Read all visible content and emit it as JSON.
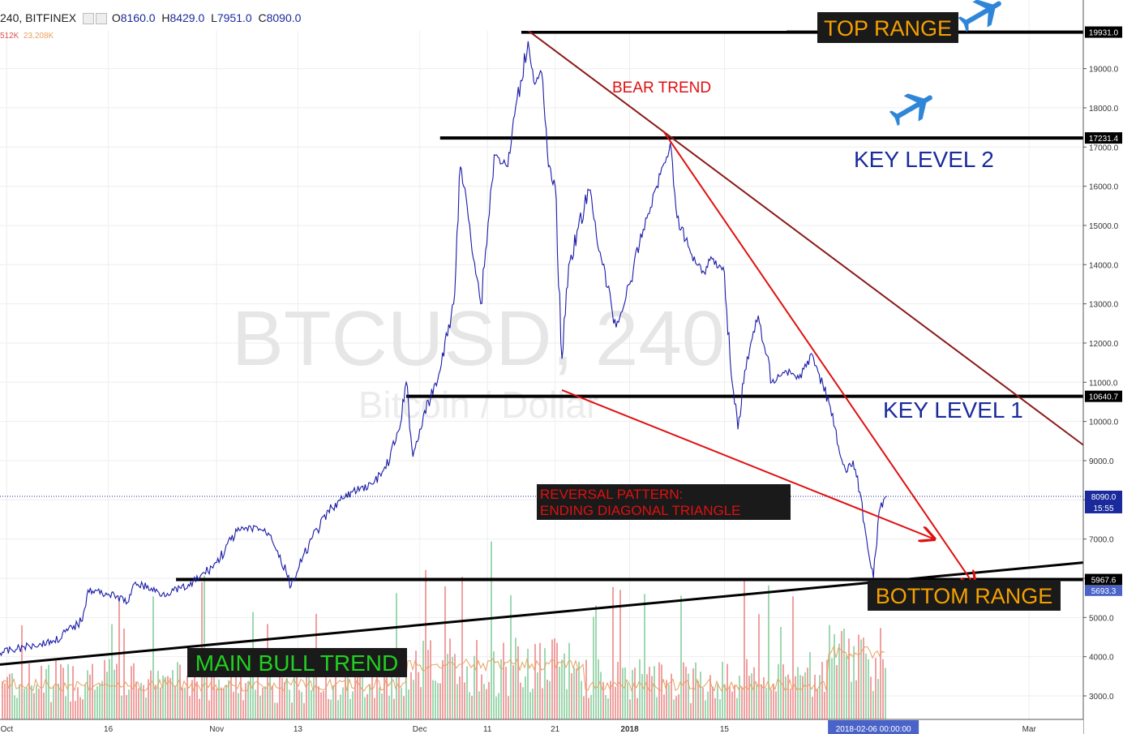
{
  "header": {
    "symbol": "240, BITFINEX",
    "o_label": "O",
    "o_value": "8160.0",
    "h_label": "H",
    "h_value": "8429.0",
    "l_label": "L",
    "l_value": "7951.0",
    "c_label": "C",
    "c_value": "8090.0",
    "volume_a": "512K",
    "volume_b": "23.208K"
  },
  "watermark": {
    "symbol": "BTCUSD, 240",
    "name": "Bitcoin / Dollar"
  },
  "chart_data": {
    "type": "line",
    "instrument": "BTCUSD, 240",
    "exchange": "BITFINEX",
    "ylim": [
      2400,
      20750
    ],
    "y_ticks": [
      3000,
      4000,
      5000,
      6000,
      7000,
      8000,
      9000,
      10000,
      11000,
      12000,
      13000,
      14000,
      15000,
      16000,
      17000,
      18000,
      19000
    ],
    "x_ticks": [
      "Oct",
      "16",
      "Nov",
      "13",
      "Dec",
      "11",
      "21",
      "2018",
      "15",
      "Mar"
    ],
    "x_tick_dates": [
      "2017-10-01",
      "2017-10-16",
      "2017-11-01",
      "2017-11-13",
      "2017-12-01",
      "2017-12-11",
      "2017-12-21",
      "2018-01-01",
      "2018-01-15",
      "2018-03-01"
    ],
    "x_range": [
      "2017-09-30",
      "2018-03-09"
    ],
    "price_series": {
      "name": "BTCUSD",
      "color": "#1a1aa8",
      "points": [
        [
          "2017-09-30",
          4100
        ],
        [
          "2017-10-05",
          4300
        ],
        [
          "2017-10-08",
          4400
        ],
        [
          "2017-10-12",
          4900
        ],
        [
          "2017-10-13",
          5700
        ],
        [
          "2017-10-16",
          5600
        ],
        [
          "2017-10-19",
          5400
        ],
        [
          "2017-10-20",
          5900
        ],
        [
          "2017-10-24",
          5600
        ],
        [
          "2017-10-28",
          5800
        ],
        [
          "2017-11-01",
          6400
        ],
        [
          "2017-11-04",
          7200
        ],
        [
          "2017-11-07",
          7300
        ],
        [
          "2017-11-09",
          7100
        ],
        [
          "2017-11-10",
          6700
        ],
        [
          "2017-11-12",
          5800
        ],
        [
          "2017-11-13",
          6200
        ],
        [
          "2017-11-15",
          7000
        ],
        [
          "2017-11-18",
          7800
        ],
        [
          "2017-11-21",
          8200
        ],
        [
          "2017-11-24",
          8400
        ],
        [
          "2017-11-26",
          8800
        ],
        [
          "2017-11-28",
          9800
        ],
        [
          "2017-11-29",
          11000
        ],
        [
          "2017-11-30",
          9100
        ],
        [
          "2017-12-01",
          9800
        ],
        [
          "2017-12-04",
          11300
        ],
        [
          "2017-12-06",
          13000
        ],
        [
          "2017-12-07",
          16500
        ],
        [
          "2017-12-08",
          15500
        ],
        [
          "2017-12-10",
          13000
        ],
        [
          "2017-12-12",
          16800
        ],
        [
          "2017-12-14",
          16500
        ],
        [
          "2017-12-15",
          17800
        ],
        [
          "2017-12-17",
          19700
        ],
        [
          "2017-12-18",
          18600
        ],
        [
          "2017-12-19",
          18900
        ],
        [
          "2017-12-20",
          16500
        ],
        [
          "2017-12-21",
          16000
        ],
        [
          "2017-12-22",
          11600
        ],
        [
          "2017-12-23",
          14000
        ],
        [
          "2017-12-26",
          15900
        ],
        [
          "2017-12-28",
          14000
        ],
        [
          "2017-12-30",
          12400
        ],
        [
          "2018-01-01",
          13500
        ],
        [
          "2018-01-03",
          14900
        ],
        [
          "2018-01-05",
          16000
        ],
        [
          "2018-01-07",
          17100
        ],
        [
          "2018-01-08",
          15200
        ],
        [
          "2018-01-10",
          14300
        ],
        [
          "2018-01-12",
          13800
        ],
        [
          "2018-01-13",
          14200
        ],
        [
          "2018-01-15",
          13800
        ],
        [
          "2018-01-16",
          11200
        ],
        [
          "2018-01-17",
          9800
        ],
        [
          "2018-01-18",
          11300
        ],
        [
          "2018-01-20",
          12700
        ],
        [
          "2018-01-22",
          11000
        ],
        [
          "2018-01-24",
          11300
        ],
        [
          "2018-01-26",
          11100
        ],
        [
          "2018-01-28",
          11700
        ],
        [
          "2018-01-29",
          11200
        ],
        [
          "2018-01-31",
          10200
        ],
        [
          "2018-02-01",
          9200
        ],
        [
          "2018-02-02",
          8700
        ],
        [
          "2018-02-03",
          9000
        ],
        [
          "2018-02-04",
          8200
        ],
        [
          "2018-02-05",
          7000
        ],
        [
          "2018-02-06",
          6000
        ],
        [
          "2018-02-07",
          7800
        ],
        [
          "2018-02-08",
          8090
        ]
      ]
    },
    "volume_series": {
      "name": "Volume",
      "up_color": "#9fd8b0",
      "down_color": "#f0a0a0",
      "avg_color": "#e8a060",
      "scale": "relative"
    },
    "horizontal_levels": [
      {
        "value": 19931.0,
        "tag": "19931.0",
        "label": "TOP RANGE",
        "start": "2017-12-16"
      },
      {
        "value": 17231.4,
        "tag": "17231.4",
        "label": "KEY LEVEL 2",
        "start": "2017-12-04"
      },
      {
        "value": 10640.7,
        "tag": "10640.7",
        "label": "KEY LEVEL 1",
        "start": "2017-11-29"
      },
      {
        "value": 5967.6,
        "tag": "5967.6",
        "label": "BOTTOM RANGE",
        "start": "2017-10-26"
      }
    ],
    "current_price": {
      "value": 8090,
      "tag": "8090.0",
      "countdown": "15:55",
      "color": "#1a2a9c"
    },
    "low_marker": {
      "value": 5693.3,
      "tag": "5693.3"
    },
    "x_cursor_label": "2018-02-06 00:00:00",
    "trendlines": [
      {
        "name": "MAIN BULL TREND",
        "color": "#000000",
        "from": [
          "2017-09-30",
          3800
        ],
        "to": [
          "2018-03-09",
          6400
        ]
      },
      {
        "name": "BEAR TREND",
        "color": "#8b1a1a",
        "from": [
          "2017-12-16",
          20100
        ],
        "to": [
          "2018-03-09",
          9400
        ]
      },
      {
        "name": "bear-trend-steep",
        "color": "#e01010",
        "from": [
          "2018-01-06",
          17400
        ],
        "to": [
          "2018-02-21",
          5800
        ]
      },
      {
        "name": "ending-diagonal-lower",
        "color": "#e01010",
        "from": [
          "2017-12-22",
          10800
        ],
        "to": [
          "2018-02-15",
          7000
        ]
      }
    ],
    "annotations": [
      {
        "text": "TOP RANGE",
        "style": "orange-box"
      },
      {
        "text": "KEY LEVEL 2",
        "style": "blue-text"
      },
      {
        "text": "KEY LEVEL 1",
        "style": "blue-text"
      },
      {
        "text": "BOTTOM RANGE",
        "style": "orange-box"
      },
      {
        "text": "BEAR TREND",
        "style": "red-text"
      },
      {
        "text": "MAIN BULL TREND",
        "style": "green-box"
      },
      {
        "text": "REVERSAL PATTERN:",
        "style": "red-box"
      },
      {
        "text": "ENDING DIAGONAL TRIANGLE",
        "style": "red-box"
      }
    ],
    "icons": [
      "airplane-icon",
      "airplane-icon"
    ]
  },
  "colors": {
    "axis_line": "#555555",
    "grid": "#eeeeee",
    "label_blue": "#1a2a9c",
    "label_orange": "#f5a000",
    "label_green": "#20d020",
    "label_red": "#e01010",
    "box_dark": "#1a1a1a",
    "airplane": "#2f86d8"
  }
}
